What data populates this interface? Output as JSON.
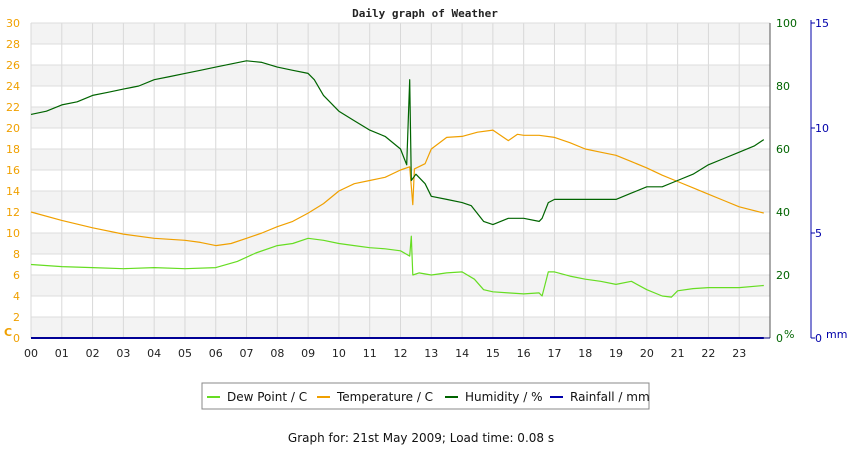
{
  "chart_data": {
    "type": "line",
    "title": "Daily graph of Weather",
    "footer": "Graph for: 21st May 2009; Load time: 0.08 s",
    "x_ticks": [
      "00",
      "01",
      "02",
      "03",
      "04",
      "05",
      "06",
      "07",
      "08",
      "09",
      "10",
      "11",
      "12",
      "13",
      "14",
      "15",
      "16",
      "17",
      "18",
      "19",
      "20",
      "21",
      "22",
      "23"
    ],
    "x_range": [
      0,
      24
    ],
    "left_axis": {
      "unit": "C",
      "range": [
        0,
        30
      ],
      "ticks": [
        0,
        2,
        4,
        6,
        8,
        10,
        12,
        14,
        16,
        18,
        20,
        22,
        24,
        26,
        28,
        30
      ],
      "color": "#f0a000"
    },
    "humidity_axis": {
      "unit": "%",
      "range": [
        0,
        100
      ],
      "ticks": [
        0,
        20,
        40,
        60,
        80,
        100
      ],
      "color": "#006400"
    },
    "rain_axis": {
      "unit": "mm",
      "range": [
        0,
        15
      ],
      "ticks": [
        0,
        5,
        10,
        15
      ],
      "color": "#0000aa"
    },
    "grid": true,
    "legend_position": "bottom",
    "series": [
      {
        "name": "Dew Point / C",
        "axis": "left",
        "color": "#66dd22",
        "points": [
          [
            0,
            7.0
          ],
          [
            1,
            6.8
          ],
          [
            2,
            6.7
          ],
          [
            3,
            6.6
          ],
          [
            4,
            6.7
          ],
          [
            5,
            6.6
          ],
          [
            6,
            6.7
          ],
          [
            6.7,
            7.3
          ],
          [
            7.3,
            8.1
          ],
          [
            8,
            8.8
          ],
          [
            8.5,
            9.0
          ],
          [
            9,
            9.5
          ],
          [
            9.5,
            9.3
          ],
          [
            10,
            9.0
          ],
          [
            10.5,
            8.8
          ],
          [
            11,
            8.6
          ],
          [
            11.5,
            8.5
          ],
          [
            12,
            8.3
          ],
          [
            12.3,
            7.8
          ],
          [
            12.35,
            9.7
          ],
          [
            12.4,
            6.0
          ],
          [
            12.6,
            6.2
          ],
          [
            13,
            6.0
          ],
          [
            13.5,
            6.2
          ],
          [
            14,
            6.3
          ],
          [
            14.4,
            5.6
          ],
          [
            14.7,
            4.6
          ],
          [
            15,
            4.4
          ],
          [
            15.5,
            4.3
          ],
          [
            16,
            4.2
          ],
          [
            16.5,
            4.3
          ],
          [
            16.6,
            4.0
          ],
          [
            16.8,
            6.3
          ],
          [
            17,
            6.3
          ],
          [
            17.5,
            5.9
          ],
          [
            18,
            5.6
          ],
          [
            18.5,
            5.4
          ],
          [
            19,
            5.1
          ],
          [
            19.5,
            5.4
          ],
          [
            20,
            4.6
          ],
          [
            20.5,
            4.0
          ],
          [
            20.8,
            3.9
          ],
          [
            21,
            4.5
          ],
          [
            21.5,
            4.7
          ],
          [
            22,
            4.8
          ],
          [
            22.5,
            4.8
          ],
          [
            23,
            4.8
          ],
          [
            23.8,
            5.0
          ]
        ]
      },
      {
        "name": "Temperature / C",
        "axis": "left",
        "color": "#f0a000",
        "points": [
          [
            0,
            12.0
          ],
          [
            1,
            11.2
          ],
          [
            2,
            10.5
          ],
          [
            3,
            9.9
          ],
          [
            4,
            9.5
          ],
          [
            5,
            9.3
          ],
          [
            5.5,
            9.1
          ],
          [
            6,
            8.8
          ],
          [
            6.5,
            9.0
          ],
          [
            7,
            9.5
          ],
          [
            7.5,
            10.0
          ],
          [
            8,
            10.6
          ],
          [
            8.5,
            11.1
          ],
          [
            9,
            11.9
          ],
          [
            9.5,
            12.8
          ],
          [
            10,
            14.0
          ],
          [
            10.5,
            14.7
          ],
          [
            11,
            15.0
          ],
          [
            11.5,
            15.3
          ],
          [
            12,
            16.0
          ],
          [
            12.3,
            16.3
          ],
          [
            12.4,
            12.7
          ],
          [
            12.45,
            16.1
          ],
          [
            12.8,
            16.6
          ],
          [
            13,
            18.0
          ],
          [
            13.5,
            19.1
          ],
          [
            14,
            19.2
          ],
          [
            14.5,
            19.6
          ],
          [
            15,
            19.8
          ],
          [
            15.5,
            18.8
          ],
          [
            15.8,
            19.4
          ],
          [
            16,
            19.3
          ],
          [
            16.5,
            19.3
          ],
          [
            17,
            19.1
          ],
          [
            17.5,
            18.6
          ],
          [
            18,
            18.0
          ],
          [
            18.5,
            17.7
          ],
          [
            19,
            17.4
          ],
          [
            19.5,
            16.8
          ],
          [
            20,
            16.2
          ],
          [
            20.5,
            15.5
          ],
          [
            21,
            14.9
          ],
          [
            21.5,
            14.3
          ],
          [
            22,
            13.7
          ],
          [
            22.5,
            13.1
          ],
          [
            23,
            12.5
          ],
          [
            23.8,
            11.9
          ]
        ]
      },
      {
        "name": "Humidity / %",
        "axis": "humidity",
        "color": "#006400",
        "points": [
          [
            0,
            71
          ],
          [
            0.5,
            72
          ],
          [
            1,
            74
          ],
          [
            1.5,
            75
          ],
          [
            2,
            77
          ],
          [
            2.5,
            78
          ],
          [
            3,
            79
          ],
          [
            3.5,
            80
          ],
          [
            4,
            82
          ],
          [
            4.5,
            83
          ],
          [
            5,
            84
          ],
          [
            5.5,
            85
          ],
          [
            6,
            86
          ],
          [
            6.5,
            87
          ],
          [
            7,
            88
          ],
          [
            7.5,
            87.5
          ],
          [
            8,
            86
          ],
          [
            8.5,
            85
          ],
          [
            9,
            84
          ],
          [
            9.2,
            82
          ],
          [
            9.5,
            77
          ],
          [
            10,
            72
          ],
          [
            10.5,
            69
          ],
          [
            11,
            66
          ],
          [
            11.5,
            64
          ],
          [
            12,
            60
          ],
          [
            12.2,
            55
          ],
          [
            12.3,
            82
          ],
          [
            12.35,
            50
          ],
          [
            12.5,
            52
          ],
          [
            12.8,
            49
          ],
          [
            13,
            45
          ],
          [
            13.5,
            44
          ],
          [
            14,
            43
          ],
          [
            14.3,
            42
          ],
          [
            14.7,
            37
          ],
          [
            15,
            36
          ],
          [
            15.5,
            38
          ],
          [
            16,
            38
          ],
          [
            16.5,
            37
          ],
          [
            16.6,
            38
          ],
          [
            16.8,
            43
          ],
          [
            17,
            44
          ],
          [
            17.5,
            44
          ],
          [
            18,
            44
          ],
          [
            18.5,
            44
          ],
          [
            19,
            44
          ],
          [
            19.5,
            46
          ],
          [
            20,
            48
          ],
          [
            20.5,
            48
          ],
          [
            21,
            50
          ],
          [
            21.5,
            52
          ],
          [
            22,
            55
          ],
          [
            22.5,
            57
          ],
          [
            23,
            59
          ],
          [
            23.5,
            61
          ],
          [
            23.8,
            63
          ]
        ]
      },
      {
        "name": "Rainfall / mm",
        "axis": "rain",
        "color": "#0000aa",
        "points": [
          [
            0,
            0
          ],
          [
            23.8,
            0
          ]
        ]
      }
    ]
  }
}
